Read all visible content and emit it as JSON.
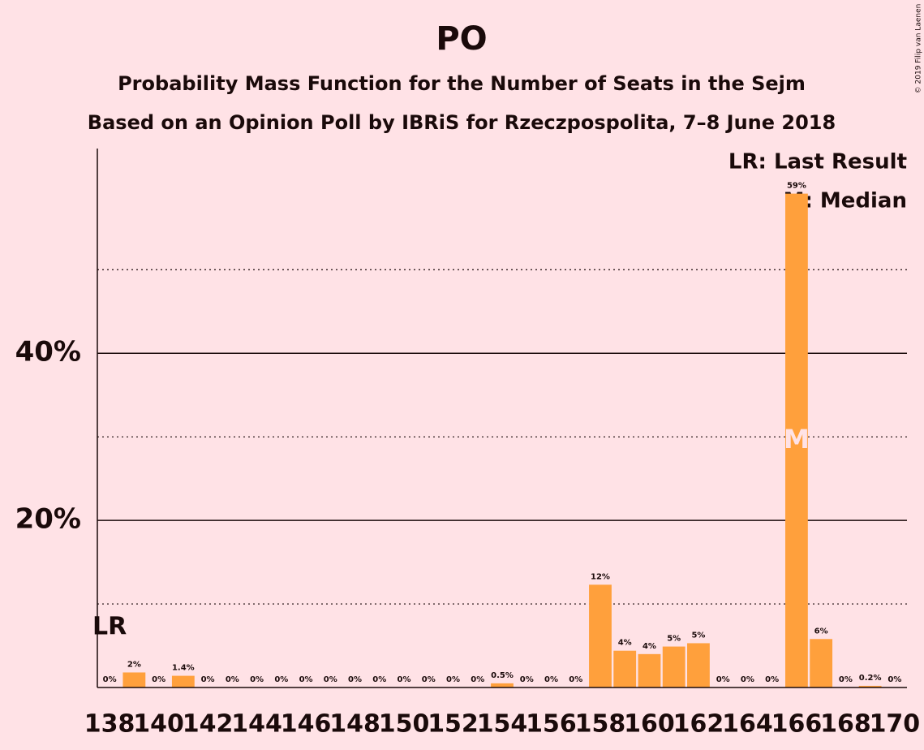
{
  "chart_data": {
    "type": "bar",
    "title": "PO",
    "subtitle": "Probability Mass Function for the Number of Seats in the Sejm",
    "subtitle2": "Based on an Opinion Poll by IBRiS for Rzeczpospolita, 7–8 June 2018",
    "copyright": "© 2019 Filip van Laenen",
    "legend": [
      "LR: Last Result",
      "M: Median"
    ],
    "categories": [
      138,
      null,
      140,
      null,
      142,
      null,
      144,
      null,
      146,
      null,
      148,
      null,
      150,
      null,
      152,
      null,
      154,
      null,
      156,
      null,
      158,
      null,
      160,
      null,
      162,
      null,
      164,
      null,
      166,
      null,
      168,
      null,
      170
    ],
    "values": [
      0,
      1.8,
      0,
      1.4,
      0,
      0,
      0,
      0,
      0,
      0,
      0,
      0,
      0,
      0,
      0,
      0,
      0.5,
      0,
      0,
      0,
      12.3,
      4.4,
      4.0,
      4.9,
      5.3,
      0,
      0,
      0,
      59.1,
      5.8,
      0,
      0.2,
      0
    ],
    "value_labels": [
      "0%",
      "2%",
      "0%",
      "1.4%",
      "0%",
      "0%",
      "0%",
      "0%",
      "0%",
      "0%",
      "0%",
      "0%",
      "0%",
      "0%",
      "0%",
      "0%",
      "0.5%",
      "0%",
      "0%",
      "0%",
      "12%",
      "4%",
      "4%",
      "5%",
      "5%",
      "0%",
      "0%",
      "0%",
      "59%",
      "6%",
      "0%",
      "0.2%",
      "0%"
    ],
    "color": "#ffa03c",
    "ylim": [
      0,
      64.5
    ],
    "yticks": [
      {
        "value": 20,
        "label": "20%"
      },
      {
        "value": 40,
        "label": "40%"
      }
    ],
    "minor_gridlines": [
      10,
      30,
      50
    ],
    "grid": true,
    "annotations": [
      {
        "text": "LR",
        "category_index": 0
      },
      {
        "text": "M",
        "category_index": 28
      }
    ]
  }
}
